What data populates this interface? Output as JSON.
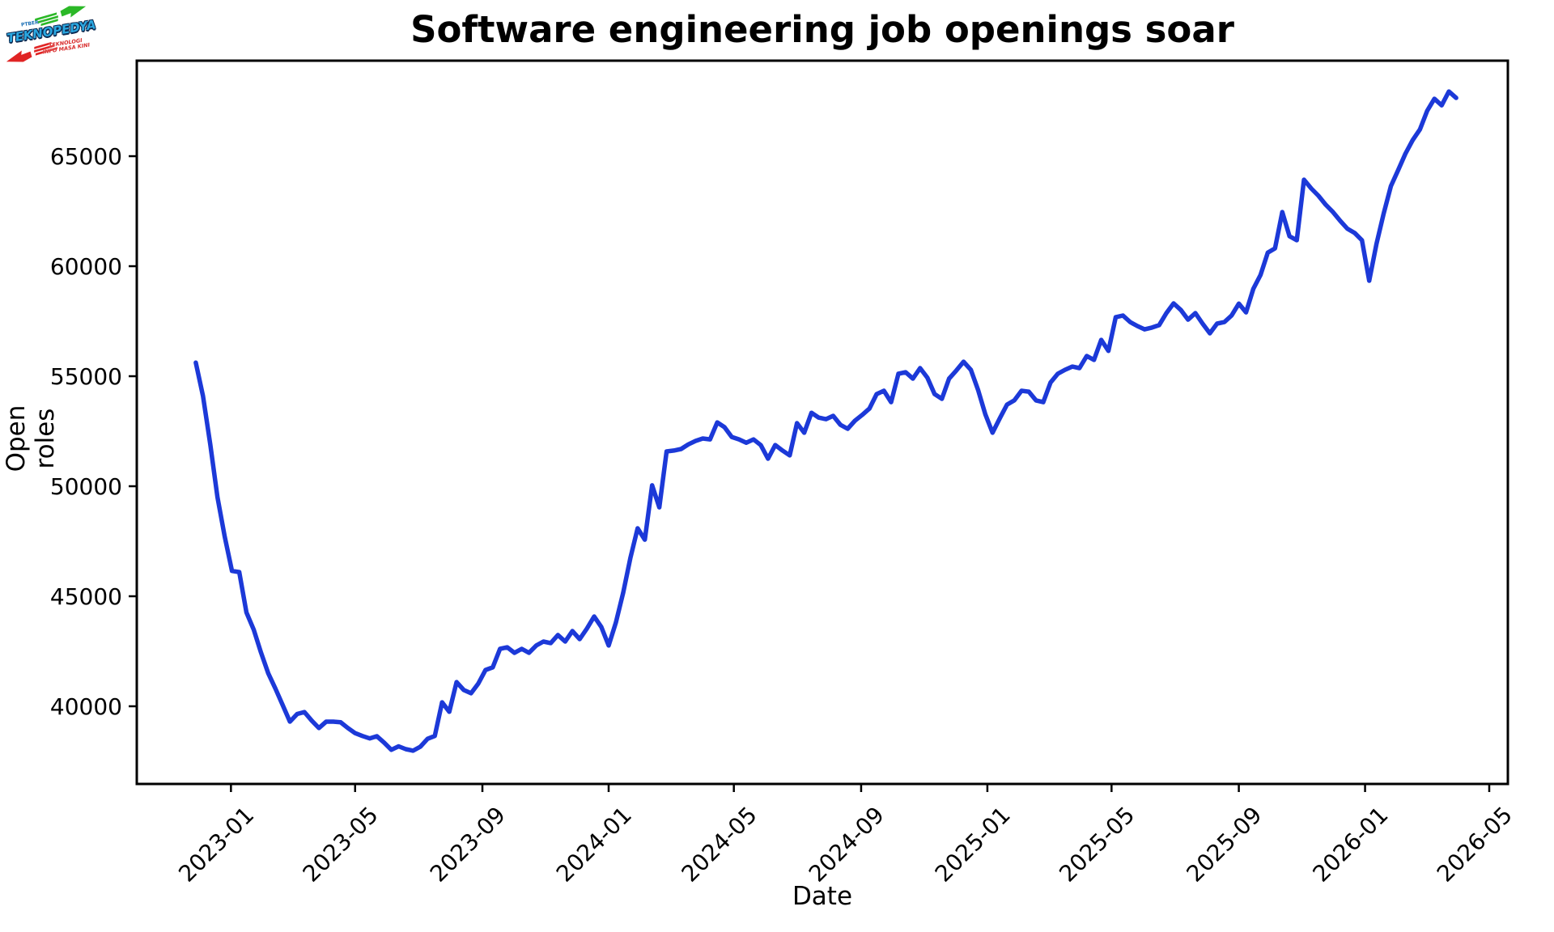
{
  "logo": {
    "title": "TEKNOPEDYA",
    "top_text": "PTBER",
    "tagline_line1": "TEKNOLOGI",
    "tagline_line2": "INFO MASA KINI",
    "text_color": "#2aa7e0",
    "outline_color": "#0d2b52",
    "up_arrow_color": "#2bb827",
    "down_arrow_color": "#e02424"
  },
  "chart_data": {
    "type": "line",
    "title": "Software engineering job openings soar",
    "xlabel": "Date",
    "ylabel": "Open roles",
    "grid": false,
    "legend_position": "none",
    "line_color": "#1c39d8",
    "line_width": 5.5,
    "axis_color": "#000000",
    "background": "#ffffff",
    "x_range": [
      "2022-10-02",
      "2026-05-19"
    ],
    "y_range": [
      36470,
      69340
    ],
    "y_ticks": [
      40000,
      45000,
      50000,
      55000,
      60000,
      65000
    ],
    "x_ticks": [
      {
        "date": "2023-01-01",
        "label": "2023-01"
      },
      {
        "date": "2023-05-01",
        "label": "2023-05"
      },
      {
        "date": "2023-09-01",
        "label": "2023-09"
      },
      {
        "date": "2024-01-01",
        "label": "2024-01"
      },
      {
        "date": "2024-05-01",
        "label": "2024-05"
      },
      {
        "date": "2024-09-01",
        "label": "2024-09"
      },
      {
        "date": "2025-01-01",
        "label": "2025-01"
      },
      {
        "date": "2025-05-01",
        "label": "2025-05"
      },
      {
        "date": "2025-09-01",
        "label": "2025-09"
      },
      {
        "date": "2026-01-01",
        "label": "2026-01"
      },
      {
        "date": "2026-05-01",
        "label": "2026-05"
      }
    ],
    "series": [
      {
        "name": "Open roles",
        "points": [
          [
            "2022-11-28",
            55620
          ],
          [
            "2022-12-05",
            54100
          ],
          [
            "2022-12-12",
            51900
          ],
          [
            "2022-12-19",
            49500
          ],
          [
            "2022-12-26",
            47700
          ],
          [
            "2023-01-02",
            46150
          ],
          [
            "2023-01-09",
            46100
          ],
          [
            "2023-01-16",
            44260
          ],
          [
            "2023-01-23",
            43480
          ],
          [
            "2023-01-30",
            42450
          ],
          [
            "2023-02-06",
            41500
          ],
          [
            "2023-02-13",
            40800
          ],
          [
            "2023-02-20",
            40050
          ],
          [
            "2023-02-27",
            39300
          ],
          [
            "2023-03-06",
            39650
          ],
          [
            "2023-03-13",
            39740
          ],
          [
            "2023-03-20",
            39350
          ],
          [
            "2023-03-27",
            39010
          ],
          [
            "2023-04-03",
            39300
          ],
          [
            "2023-04-10",
            39300
          ],
          [
            "2023-04-17",
            39270
          ],
          [
            "2023-04-24",
            39010
          ],
          [
            "2023-05-01",
            38780
          ],
          [
            "2023-05-08",
            38650
          ],
          [
            "2023-05-15",
            38540
          ],
          [
            "2023-05-22",
            38640
          ],
          [
            "2023-05-29",
            38350
          ],
          [
            "2023-06-05",
            38020
          ],
          [
            "2023-06-12",
            38180
          ],
          [
            "2023-06-19",
            38050
          ],
          [
            "2023-06-26",
            37980
          ],
          [
            "2023-07-03",
            38160
          ],
          [
            "2023-07-10",
            38520
          ],
          [
            "2023-07-17",
            38650
          ],
          [
            "2023-07-24",
            40180
          ],
          [
            "2023-07-31",
            39750
          ],
          [
            "2023-08-07",
            41100
          ],
          [
            "2023-08-14",
            40740
          ],
          [
            "2023-08-21",
            40590
          ],
          [
            "2023-08-28",
            41030
          ],
          [
            "2023-09-04",
            41650
          ],
          [
            "2023-09-11",
            41770
          ],
          [
            "2023-09-18",
            42610
          ],
          [
            "2023-09-25",
            42680
          ],
          [
            "2023-10-02",
            42430
          ],
          [
            "2023-10-09",
            42610
          ],
          [
            "2023-10-16",
            42430
          ],
          [
            "2023-10-23",
            42760
          ],
          [
            "2023-10-30",
            42940
          ],
          [
            "2023-11-06",
            42870
          ],
          [
            "2023-11-13",
            43240
          ],
          [
            "2023-11-20",
            42940
          ],
          [
            "2023-11-27",
            43420
          ],
          [
            "2023-12-04",
            43050
          ],
          [
            "2023-12-11",
            43530
          ],
          [
            "2023-12-18",
            44080
          ],
          [
            "2023-12-25",
            43600
          ],
          [
            "2024-01-01",
            42760
          ],
          [
            "2024-01-08",
            43800
          ],
          [
            "2024-01-15",
            45150
          ],
          [
            "2024-01-22",
            46730
          ],
          [
            "2024-01-29",
            48090
          ],
          [
            "2024-02-05",
            47570
          ],
          [
            "2024-02-12",
            50040
          ],
          [
            "2024-02-19",
            49040
          ],
          [
            "2024-02-26",
            51580
          ],
          [
            "2024-03-04",
            51620
          ],
          [
            "2024-03-11",
            51690
          ],
          [
            "2024-03-18",
            51900
          ],
          [
            "2024-03-25",
            52060
          ],
          [
            "2024-04-01",
            52170
          ],
          [
            "2024-04-08",
            52130
          ],
          [
            "2024-04-15",
            52900
          ],
          [
            "2024-04-22",
            52680
          ],
          [
            "2024-04-29",
            52240
          ],
          [
            "2024-05-06",
            52130
          ],
          [
            "2024-05-13",
            51980
          ],
          [
            "2024-05-20",
            52130
          ],
          [
            "2024-05-27",
            51870
          ],
          [
            "2024-06-03",
            51250
          ],
          [
            "2024-06-10",
            51870
          ],
          [
            "2024-06-17",
            51620
          ],
          [
            "2024-06-24",
            51400
          ],
          [
            "2024-07-01",
            52870
          ],
          [
            "2024-07-08",
            52430
          ],
          [
            "2024-07-15",
            53340
          ],
          [
            "2024-07-22",
            53120
          ],
          [
            "2024-07-29",
            53050
          ],
          [
            "2024-08-05",
            53200
          ],
          [
            "2024-08-12",
            52790
          ],
          [
            "2024-08-19",
            52610
          ],
          [
            "2024-08-26",
            52980
          ],
          [
            "2024-09-02",
            53240
          ],
          [
            "2024-09-09",
            53530
          ],
          [
            "2024-09-16",
            54190
          ],
          [
            "2024-09-23",
            54340
          ],
          [
            "2024-09-30",
            53820
          ],
          [
            "2024-10-07",
            55110
          ],
          [
            "2024-10-14",
            55180
          ],
          [
            "2024-10-21",
            54890
          ],
          [
            "2024-10-28",
            55370
          ],
          [
            "2024-11-04",
            54930
          ],
          [
            "2024-11-11",
            54190
          ],
          [
            "2024-11-18",
            53970
          ],
          [
            "2024-11-25",
            54890
          ],
          [
            "2024-12-02",
            55260
          ],
          [
            "2024-12-09",
            55660
          ],
          [
            "2024-12-16",
            55290
          ],
          [
            "2024-12-23",
            54380
          ],
          [
            "2024-12-30",
            53270
          ],
          [
            "2025-01-06",
            52430
          ],
          [
            "2025-01-13",
            53090
          ],
          [
            "2025-01-20",
            53710
          ],
          [
            "2025-01-27",
            53900
          ],
          [
            "2025-02-03",
            54340
          ],
          [
            "2025-02-10",
            54300
          ],
          [
            "2025-02-17",
            53900
          ],
          [
            "2025-02-24",
            53820
          ],
          [
            "2025-03-03",
            54710
          ],
          [
            "2025-03-10",
            55110
          ],
          [
            "2025-03-17",
            55290
          ],
          [
            "2025-03-24",
            55440
          ],
          [
            "2025-03-31",
            55370
          ],
          [
            "2025-04-07",
            55920
          ],
          [
            "2025-04-14",
            55740
          ],
          [
            "2025-04-21",
            56650
          ],
          [
            "2025-04-28",
            56150
          ],
          [
            "2025-05-05",
            57680
          ],
          [
            "2025-05-12",
            57760
          ],
          [
            "2025-05-19",
            57460
          ],
          [
            "2025-05-26",
            57280
          ],
          [
            "2025-06-02",
            57130
          ],
          [
            "2025-06-09",
            57210
          ],
          [
            "2025-06-16",
            57320
          ],
          [
            "2025-06-23",
            57870
          ],
          [
            "2025-06-30",
            58310
          ],
          [
            "2025-07-07",
            58010
          ],
          [
            "2025-07-14",
            57570
          ],
          [
            "2025-07-21",
            57870
          ],
          [
            "2025-07-28",
            57390
          ],
          [
            "2025-08-04",
            56950
          ],
          [
            "2025-08-11",
            57390
          ],
          [
            "2025-08-18",
            57460
          ],
          [
            "2025-08-25",
            57760
          ],
          [
            "2025-09-01",
            58300
          ],
          [
            "2025-09-08",
            57900
          ],
          [
            "2025-09-15",
            58970
          ],
          [
            "2025-09-22",
            59600
          ],
          [
            "2025-09-29",
            60620
          ],
          [
            "2025-10-06",
            60810
          ],
          [
            "2025-10-13",
            62460
          ],
          [
            "2025-10-20",
            61360
          ],
          [
            "2025-10-27",
            61180
          ],
          [
            "2025-11-03",
            63930
          ],
          [
            "2025-11-10",
            63530
          ],
          [
            "2025-11-17",
            63200
          ],
          [
            "2025-11-24",
            62790
          ],
          [
            "2025-12-01",
            62460
          ],
          [
            "2025-12-08",
            62060
          ],
          [
            "2025-12-15",
            61700
          ],
          [
            "2025-12-22",
            61510
          ],
          [
            "2025-12-29",
            61180
          ],
          [
            "2026-01-05",
            59340
          ],
          [
            "2026-01-12",
            61000
          ],
          [
            "2026-01-19",
            62400
          ],
          [
            "2026-01-26",
            63640
          ],
          [
            "2026-02-02",
            64370
          ],
          [
            "2026-02-09",
            65110
          ],
          [
            "2026-02-16",
            65730
          ],
          [
            "2026-02-23",
            66210
          ],
          [
            "2026-03-02",
            67060
          ],
          [
            "2026-03-09",
            67610
          ],
          [
            "2026-03-16",
            67310
          ],
          [
            "2026-03-23",
            67940
          ],
          [
            "2026-03-30",
            67650
          ]
        ]
      }
    ]
  }
}
